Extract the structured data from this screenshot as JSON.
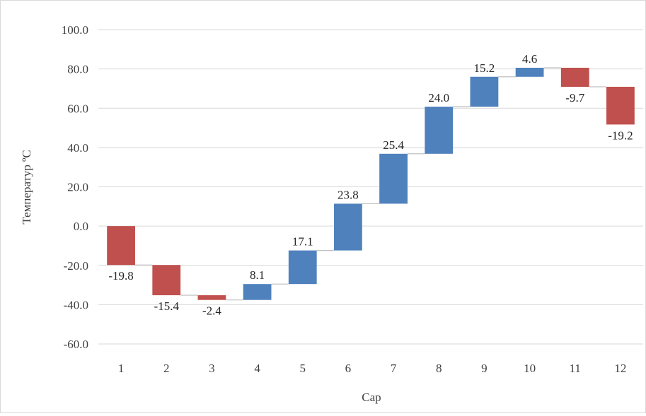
{
  "chart_data": {
    "type": "bar",
    "subtype": "waterfall",
    "title": "",
    "xlabel": "Сар",
    "ylabel": "Температур ºС",
    "categories": [
      "1",
      "2",
      "3",
      "4",
      "5",
      "6",
      "7",
      "8",
      "9",
      "10",
      "11",
      "12"
    ],
    "values": [
      -19.8,
      -15.4,
      -2.4,
      8.1,
      17.1,
      23.8,
      25.4,
      24.0,
      15.2,
      4.6,
      -9.7,
      -19.2
    ],
    "data_labels": [
      "-19.8",
      "-15.4",
      "-2.4",
      "8.1",
      "17.1",
      "23.8",
      "25.4",
      "24.0",
      "15.2",
      "4.6",
      "-9.7",
      "-19.2"
    ],
    "ylim": [
      -60,
      100
    ],
    "yticks": [
      100,
      80,
      60,
      40,
      20,
      0,
      -20,
      -40,
      -60
    ],
    "ytick_labels": [
      "100.0",
      "80.0",
      "60.0",
      "40.0",
      "20.0",
      "0.0",
      "-20.0",
      "-40.0",
      "-60.0"
    ],
    "grid": true,
    "legend": "none",
    "colors": {
      "increase": "#4f81bd",
      "decrease": "#c0504d",
      "gridline": "#d9d9d9",
      "connector": "#bfbfbf"
    }
  }
}
